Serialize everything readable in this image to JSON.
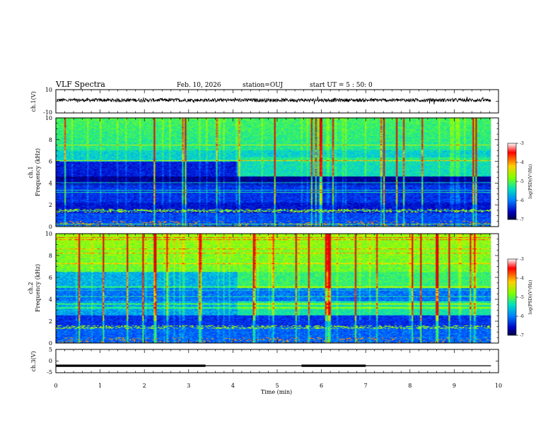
{
  "header": {
    "title": "VLF Spectra",
    "date": "Feb. 10, 2026",
    "station": "station=OUJ",
    "start": "start  UT =  5 : 50: 0"
  },
  "chart_data": [
    {
      "type": "line",
      "name": "ch1-waveform",
      "ylabel": "ch.1(V)",
      "ylim": [
        -10,
        10
      ],
      "yticks": [
        "10",
        "-10"
      ],
      "x_range_min": [
        0,
        9.83
      ],
      "description_values": {
        "baseline": 1.0,
        "noise_amplitude": 1.5
      }
    },
    {
      "type": "heatmap",
      "name": "ch1-spectrogram",
      "ylabel_top": "ch.1",
      "ylabel": "Frequency  (kHz)",
      "ylim": [
        0,
        10
      ],
      "yticks": [
        "0",
        "2",
        "4",
        "6",
        "8",
        "10"
      ],
      "x_range_min": [
        0,
        9.83
      ],
      "level_shift_min": 4.1,
      "colorbar": {
        "label": "log(PSD)(V²/Hz)",
        "ticks": [
          "-3",
          "-4",
          "-5",
          "-6",
          "-7"
        ],
        "range": [
          -7,
          -3
        ]
      }
    },
    {
      "type": "heatmap",
      "name": "ch2-spectrogram",
      "ylabel_top": "ch.2",
      "ylabel": "Frequency  (kHz)",
      "ylim": [
        0,
        10
      ],
      "yticks": [
        "0",
        "2",
        "4",
        "6",
        "8",
        "10"
      ],
      "x_range_min": [
        0,
        9.83
      ],
      "level_shift_min": 4.1,
      "colorbar": {
        "label": "log(PSD)(V²/Hz)",
        "ticks": [
          "-3",
          "-4",
          "-5",
          "-6",
          "-7"
        ],
        "range": [
          -7,
          -3
        ]
      }
    },
    {
      "type": "line",
      "name": "ch3-signal",
      "ylabel": "ch.3(V)",
      "ylim": [
        -5,
        5
      ],
      "yticks": [
        "5",
        "0",
        "-5"
      ],
      "level": -2.0,
      "thick_segments_min": [
        [
          0,
          3.38
        ],
        [
          5.55,
          7.0
        ]
      ],
      "x_range_min": [
        0,
        9.83
      ]
    }
  ],
  "xaxis": {
    "label": "Time  (min)",
    "range": [
      0,
      10
    ],
    "ticks": [
      "0",
      "1",
      "2",
      "3",
      "4",
      "5",
      "6",
      "7",
      "8",
      "9",
      "10"
    ]
  }
}
